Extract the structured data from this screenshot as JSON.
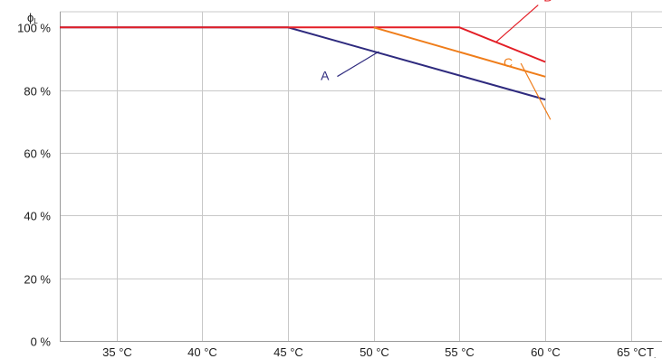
{
  "chart_data": {
    "type": "line",
    "y_axis_label": {
      "main": "ϕ",
      "sub": "L"
    },
    "x_axis_label": {
      "main": "T",
      "sub": "."
    },
    "xlim": [
      31.7,
      66.8
    ],
    "ylim": [
      0,
      105
    ],
    "x_ticks": [
      {
        "value": 35,
        "label": "35 °C"
      },
      {
        "value": 40,
        "label": "40 °C"
      },
      {
        "value": 45,
        "label": "45 °C"
      },
      {
        "value": 50,
        "label": "50 °C"
      },
      {
        "value": 55,
        "label": "55 °C"
      },
      {
        "value": 60,
        "label": "60 °C"
      },
      {
        "value": 65,
        "label": "65 °C"
      }
    ],
    "y_ticks": [
      {
        "value": 0,
        "label": "0 %"
      },
      {
        "value": 20,
        "label": "20 %"
      },
      {
        "value": 40,
        "label": "40 %"
      },
      {
        "value": 60,
        "label": "60 %"
      },
      {
        "value": 80,
        "label": "80 %"
      },
      {
        "value": 100,
        "label": "100 %"
      }
    ],
    "grid": true,
    "series": [
      {
        "name": "A",
        "color": "#2e2a7e",
        "points": [
          [
            31.7,
            100
          ],
          [
            45,
            100
          ],
          [
            60,
            77
          ]
        ],
        "label_at": [
          47.4,
          83.2
        ],
        "pointer_to": [
          50.3,
          92.3
        ]
      },
      {
        "name": "B",
        "color": "#e31e26",
        "points": [
          [
            31.7,
            100
          ],
          [
            55,
            100
          ],
          [
            60,
            89
          ]
        ],
        "label_at": [
          59.9,
          108.3
        ],
        "pointer_to": [
          57.1,
          95.2
        ]
      },
      {
        "name": "C",
        "color": "#ef7d1a",
        "points": [
          [
            50,
            100
          ],
          [
            60,
            84.3
          ]
        ],
        "label_at": [
          58.1,
          87.4
        ],
        "pointer_to": [
          60.3,
          70.6
        ]
      }
    ]
  }
}
